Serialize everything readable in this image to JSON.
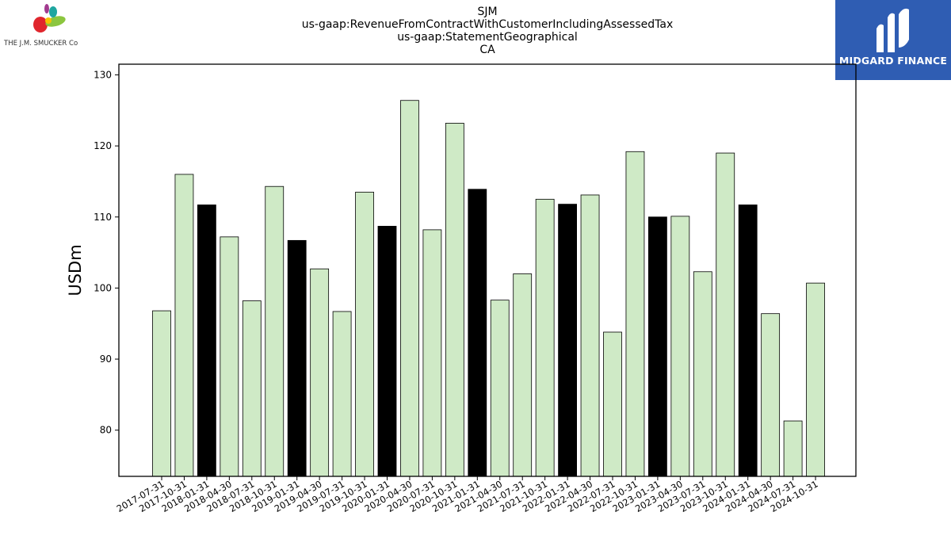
{
  "header": {
    "title_lines": [
      "SJM",
      "us-gaap:RevenueFromContractWithCustomerIncludingAssessedTax",
      "us-gaap:StatementGeographical",
      "CA"
    ]
  },
  "logos": {
    "left_text": "THE J.M. SMUCKER Co",
    "right_text": "MIDGARD FINANCE",
    "right_bg": "#2f5db3"
  },
  "colors": {
    "bar_default": "#cfeac6",
    "bar_highlight": "#000000",
    "bar_edge": "#000000"
  },
  "chart_data": {
    "type": "bar",
    "ylabel": "USDm",
    "ylim": [
      73.5,
      131.5
    ],
    "yticks": [
      80,
      90,
      100,
      110,
      120,
      130
    ],
    "categories": [
      "2017-07-31",
      "2017-10-31",
      "2018-01-31",
      "2018-04-30",
      "2018-07-31",
      "2018-10-31",
      "2019-01-31",
      "2019-04-30",
      "2019-07-31",
      "2019-10-31",
      "2020-01-31",
      "2020-04-30",
      "2020-07-31",
      "2020-10-31",
      "2021-01-31",
      "2021-04-30",
      "2021-07-31",
      "2021-10-31",
      "2022-01-31",
      "2022-04-30",
      "2022-07-31",
      "2022-10-31",
      "2023-01-31",
      "2023-04-30",
      "2023-07-31",
      "2023-10-31",
      "2024-01-31",
      "2024-04-30",
      "2024-07-31",
      "2024-10-31"
    ],
    "values": [
      96.8,
      116.0,
      111.7,
      107.2,
      98.2,
      114.3,
      106.7,
      102.7,
      96.7,
      113.5,
      108.7,
      126.4,
      108.2,
      123.2,
      113.9,
      98.3,
      102.0,
      112.5,
      111.8,
      113.1,
      93.8,
      119.2,
      110.0,
      110.1,
      102.3,
      119.0,
      111.7,
      96.4,
      81.3,
      100.7
    ],
    "highlight": [
      false,
      false,
      true,
      false,
      false,
      false,
      true,
      false,
      false,
      false,
      true,
      false,
      false,
      false,
      true,
      false,
      false,
      false,
      true,
      false,
      false,
      false,
      true,
      false,
      false,
      false,
      true,
      false,
      false,
      false
    ]
  }
}
